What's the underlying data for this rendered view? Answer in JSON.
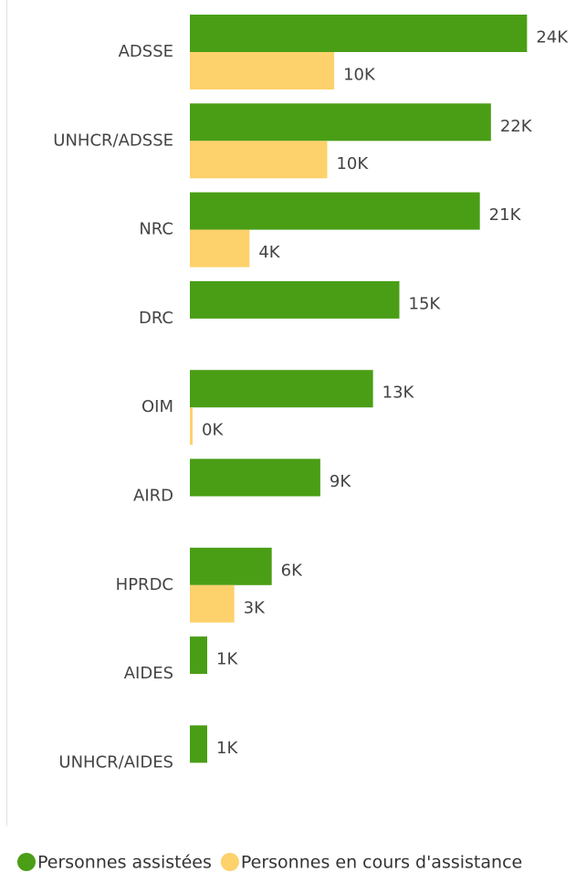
{
  "chart_data": {
    "type": "hbar",
    "categories": [
      "ADSSE",
      "UNHCR/ADSSE",
      "NRC",
      "DRC",
      "OIM",
      "AIRD",
      "HPRDC",
      "AIDES",
      "UNHCR/AIDES"
    ],
    "series": [
      {
        "name": "Personnes assistées",
        "color": "#4a9e16",
        "values": [
          24.3,
          21.7,
          20.9,
          15.1,
          13.2,
          9.4,
          5.9,
          1.25,
          1.25
        ],
        "value_labels": [
          "24K",
          "22K",
          "21K",
          "15K",
          "13K",
          "9K",
          "6K",
          "1K",
          "1K"
        ]
      },
      {
        "name": "Personnes en cours d'assistance",
        "color": "#fdd16b",
        "values": [
          10.4,
          9.9,
          4.3,
          null,
          0.2,
          null,
          3.2,
          null,
          null
        ],
        "value_labels": [
          "10K",
          "10K",
          "4K",
          null,
          "0K",
          null,
          "3K",
          null,
          null
        ]
      }
    ],
    "xlim": [
      0,
      25
    ],
    "legend": "bottom"
  }
}
